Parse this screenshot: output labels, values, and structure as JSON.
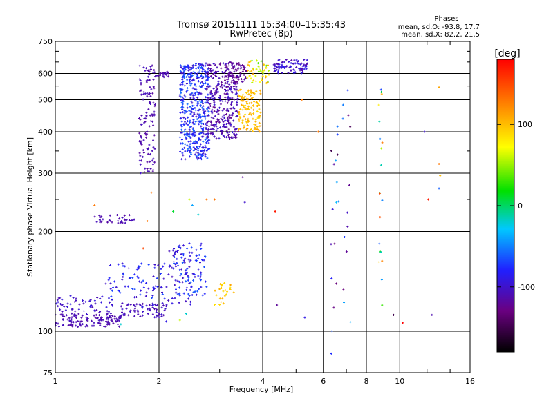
{
  "chart_data": {
    "type": "scatter",
    "title": "Tromsø 20151111 15:34:00–15:35:43",
    "subtitle": "RwPretec (8p)",
    "xlabel": "Frequency [MHz]",
    "ylabel": "Stationary phase Virtual Height [km]",
    "x_scale": "log",
    "y_scale": "log",
    "xlim": [
      1,
      16
    ],
    "ylim": [
      75,
      750
    ],
    "x_ticks": [
      1,
      2,
      4,
      6,
      8,
      10,
      16
    ],
    "x_tick_labels": [
      "1",
      "2",
      "4",
      "6",
      "8",
      "10",
      "16"
    ],
    "y_ticks": [
      75,
      100,
      200,
      300,
      400,
      500,
      600,
      750
    ],
    "y_tick_labels": [
      "75",
      "100",
      "200",
      "300",
      "400",
      "500",
      "600",
      "750"
    ],
    "grid": true,
    "phase_info": {
      "title": "Phases",
      "line1": "mean, sd,O: -93.8, 17.7",
      "line2": "mean, sd,X:  82.2, 21.5"
    },
    "colorbar": {
      "label": "[deg]",
      "range": [
        -180,
        180
      ],
      "ticks": [
        100,
        0,
        -100
      ],
      "tick_labels": [
        "100",
        "0",
        "-100"
      ],
      "colormap": "rainbow (black→purple→blue→cyan→green→yellow→orange→red)"
    },
    "clusters": [
      {
        "x": [
          1.0,
          1.55
        ],
        "y": [
          103,
          113
        ],
        "n": 120,
        "phase": -110,
        "spread": 6
      },
      {
        "x": [
          1.55,
          2.1
        ],
        "y": [
          110,
          122
        ],
        "n": 70,
        "phase": -105,
        "spread": 8
      },
      {
        "x": [
          2.1,
          2.5
        ],
        "y": [
          120,
          180
        ],
        "n": 50,
        "phase": -100,
        "spread": 10
      },
      {
        "x": [
          1.0,
          1.5
        ],
        "y": [
          112,
          128
        ],
        "n": 60,
        "phase": -100,
        "spread": 10
      },
      {
        "x": [
          1.4,
          2.1
        ],
        "y": [
          118,
          162
        ],
        "n": 80,
        "phase": -85,
        "spread": 20
      },
      {
        "x": [
          2.2,
          2.75
        ],
        "y": [
          128,
          185
        ],
        "n": 90,
        "phase": -80,
        "spread": 20
      },
      {
        "x": [
          2.9,
          3.3
        ],
        "y": [
          120,
          140
        ],
        "n": 25,
        "phase": 95,
        "spread": 15
      },
      {
        "x": [
          1.3,
          1.7
        ],
        "y": [
          212,
          225
        ],
        "n": 35,
        "phase": -110,
        "spread": 6
      },
      {
        "x": [
          1.75,
          1.95
        ],
        "y": [
          300,
          640
        ],
        "n": 120,
        "phase": -110,
        "spread": 8
      },
      {
        "x": [
          1.95,
          2.15
        ],
        "y": [
          585,
          610
        ],
        "n": 20,
        "phase": -110,
        "spread": 6
      },
      {
        "x": [
          2.3,
          2.8
        ],
        "y": [
          330,
          645
        ],
        "n": 450,
        "phase": -80,
        "spread": 25
      },
      {
        "x": [
          2.75,
          3.4
        ],
        "y": [
          380,
          645
        ],
        "n": 300,
        "phase": -110,
        "spread": 15
      },
      {
        "x": [
          3.1,
          3.6
        ],
        "y": [
          560,
          650
        ],
        "n": 80,
        "phase": -120,
        "spread": 10
      },
      {
        "x": [
          3.4,
          3.95
        ],
        "y": [
          400,
          540
        ],
        "n": 120,
        "phase": 100,
        "spread": 15
      },
      {
        "x": [
          3.6,
          4.2
        ],
        "y": [
          560,
          660
        ],
        "n": 50,
        "phase": 70,
        "spread": 40
      },
      {
        "x": [
          4.3,
          5.4
        ],
        "y": [
          600,
          665
        ],
        "n": 80,
        "phase": -100,
        "spread": 15
      },
      {
        "x": [
          6.3,
          7.2
        ],
        "y": [
          85,
          600
        ],
        "n": 30,
        "phase": -90,
        "spread": 60
      },
      {
        "x": [
          8.7,
          8.9
        ],
        "y": [
          110,
          540
        ],
        "n": 20,
        "phase": 40,
        "spread": 120
      }
    ],
    "points": [
      {
        "x": 1.3,
        "y": 240,
        "phase": 130
      },
      {
        "x": 1.55,
        "y": 105,
        "phase": -20
      },
      {
        "x": 1.85,
        "y": 215,
        "phase": 130
      },
      {
        "x": 1.9,
        "y": 262,
        "phase": 130
      },
      {
        "x": 1.8,
        "y": 178,
        "phase": 150
      },
      {
        "x": 2.2,
        "y": 230,
        "phase": 10
      },
      {
        "x": 2.5,
        "y": 240,
        "phase": -40
      },
      {
        "x": 2.45,
        "y": 250,
        "phase": 60
      },
      {
        "x": 2.6,
        "y": 225,
        "phase": -20
      },
      {
        "x": 2.75,
        "y": 250,
        "phase": 130
      },
      {
        "x": 2.9,
        "y": 250,
        "phase": 130
      },
      {
        "x": 3.5,
        "y": 292,
        "phase": -120
      },
      {
        "x": 3.55,
        "y": 245,
        "phase": -100
      },
      {
        "x": 2.1,
        "y": 107,
        "phase": -90
      },
      {
        "x": 2.3,
        "y": 108,
        "phase": 60
      },
      {
        "x": 2.4,
        "y": 113,
        "phase": -20
      },
      {
        "x": 4.35,
        "y": 230,
        "phase": 170
      },
      {
        "x": 4.4,
        "y": 120,
        "phase": -120
      },
      {
        "x": 5.3,
        "y": 110,
        "phase": -90
      },
      {
        "x": 5.2,
        "y": 500,
        "phase": 130
      },
      {
        "x": 5.8,
        "y": 400,
        "phase": 130
      },
      {
        "x": 9.6,
        "y": 112,
        "phase": -150
      },
      {
        "x": 10.2,
        "y": 106,
        "phase": 180
      },
      {
        "x": 11.8,
        "y": 400,
        "phase": -100
      },
      {
        "x": 12.1,
        "y": 250,
        "phase": 170
      },
      {
        "x": 12.4,
        "y": 112,
        "phase": -110
      },
      {
        "x": 13.0,
        "y": 545,
        "phase": 110
      },
      {
        "x": 13.0,
        "y": 320,
        "phase": 130
      },
      {
        "x": 13.1,
        "y": 295,
        "phase": 100
      },
      {
        "x": 13.0,
        "y": 270,
        "phase": -60
      }
    ]
  }
}
